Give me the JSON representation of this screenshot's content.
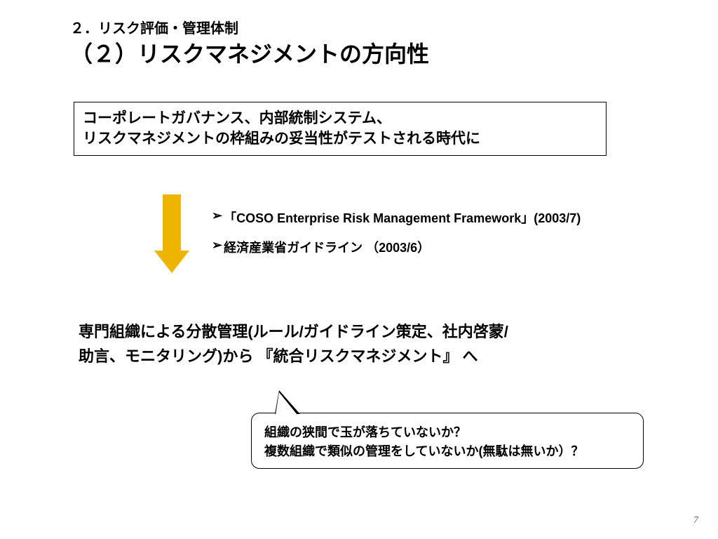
{
  "header": {
    "section_label": "２．リスク評価・管理体制",
    "title": "（２）リスクマネジメントの方向性"
  },
  "box1": {
    "line1": "コーポレートガバナンス、内部統制システム、",
    "line2": "リスクマネジメントの枠組みの妥当性がテストされる時代に"
  },
  "arrow": {
    "color": "#eeb500"
  },
  "bullets": [
    {
      "marker": "➢",
      "text": "「COSO Enterprise Risk Management Framework」(2003/7)"
    },
    {
      "marker": "➢",
      "text": "経済産業省ガイドライン （2003/6）"
    }
  ],
  "body": {
    "line1": "専門組織による分散管理(ルール/ガイドライン策定、社内啓蒙/",
    "line2": "助言、モニタリング)から 『統合リスクマネジメント』 へ"
  },
  "callout": {
    "line1": "組織の狭間で玉が落ちていないか？",
    "line2": "複数組織で類似の管理をしていないか(無駄は無いか）？"
  },
  "page_number": "7",
  "styling": {
    "background_color": "#ffffff",
    "text_color": "#000000",
    "border_color": "#000000",
    "title_fontsize": 32,
    "section_fontsize": 20,
    "box_fontsize": 21,
    "bullet_fontsize": 18,
    "body_fontsize": 22,
    "callout_fontsize": 18,
    "callout_border_radius": 12
  }
}
